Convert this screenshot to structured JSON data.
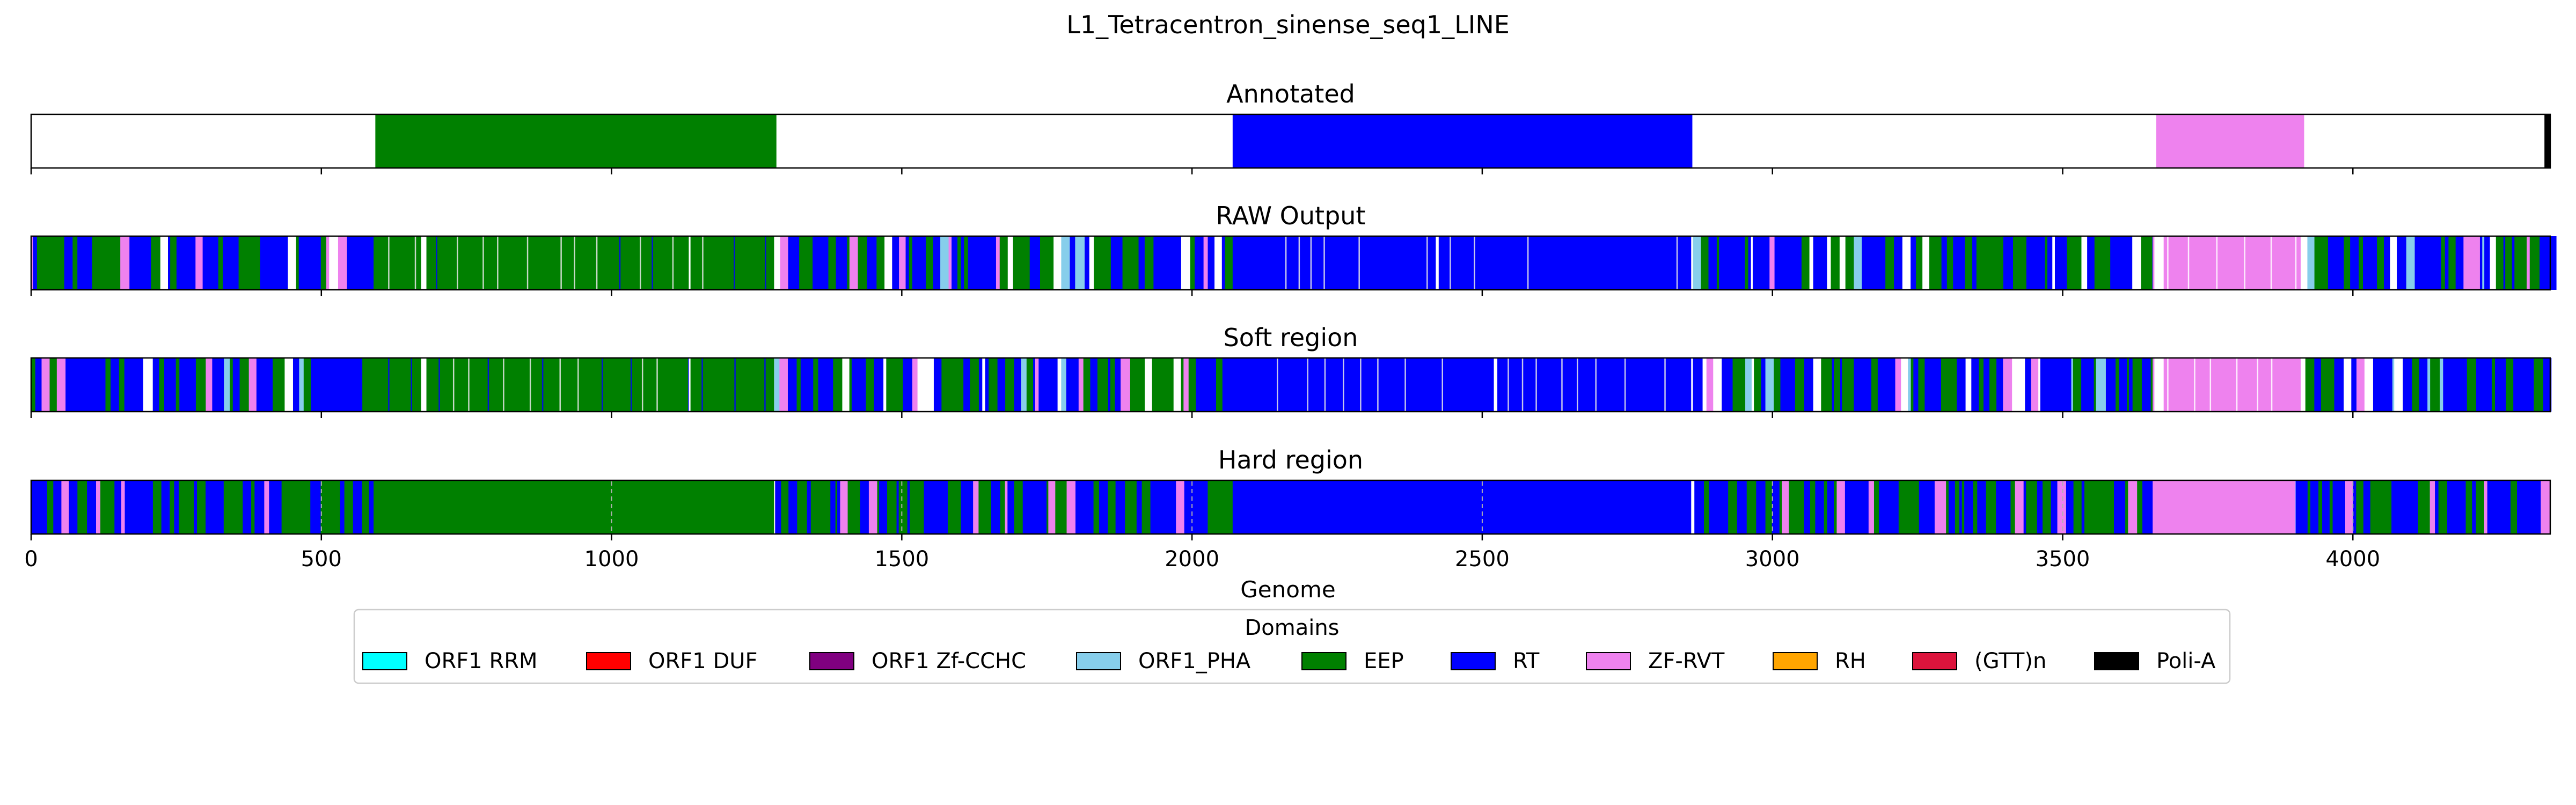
{
  "chart_data": {
    "type": "bar",
    "title": "L1_Tetracentron_sinense_seq1_LINE",
    "xlabel": "Genome",
    "xlim": [
      0,
      4340
    ],
    "xticks": [
      0,
      500,
      1000,
      1500,
      2000,
      2500,
      3000,
      3500,
      4000
    ],
    "tracks": [
      {
        "name": "Annotated",
        "segments": [
          {
            "domain": "EEP",
            "start": 593,
            "end": 1284
          },
          {
            "domain": "RT",
            "start": 2070,
            "end": 2862
          },
          {
            "domain": "ZF-RVT",
            "start": 3661,
            "end": 3916
          },
          {
            "domain": "Poli-A",
            "start": 4330,
            "end": 4340
          }
        ]
      },
      {
        "name": "RAW Output",
        "noise": true,
        "segments": [
          {
            "domain": "EEP",
            "start": 590,
            "end": 1280
          },
          {
            "domain": "RT",
            "start": 2070,
            "end": 2860
          },
          {
            "domain": "ZF-RVT",
            "start": 3655,
            "end": 3910
          }
        ],
        "gaps": [
          [
            672,
            681
          ],
          [
            1133,
            1136
          ],
          [
            2420,
            2425
          ],
          [
            3658,
            3674
          ]
        ]
      },
      {
        "name": "Soft region",
        "noise": true,
        "segments": [
          {
            "domain": "EEP",
            "start": 590,
            "end": 1280
          },
          {
            "domain": "RT",
            "start": 2070,
            "end": 2860
          },
          {
            "domain": "ZF-RVT",
            "start": 3655,
            "end": 3910
          }
        ],
        "gaps": [
          [
            672,
            681
          ],
          [
            1133,
            1136
          ],
          [
            2520,
            2526
          ],
          [
            3658,
            3674
          ]
        ]
      },
      {
        "name": "Hard region",
        "noise": true,
        "segments": [
          {
            "domain": "EEP",
            "start": 590,
            "end": 1280
          },
          {
            "domain": "RT",
            "start": 2070,
            "end": 2860
          },
          {
            "domain": "ZF-RVT",
            "start": 3655,
            "end": 3900
          }
        ],
        "gaps": []
      }
    ],
    "legend": {
      "title": "Domains",
      "placement": "bottom-center",
      "items": [
        {
          "label": "ORF1 RRM",
          "color": "#00ffff"
        },
        {
          "label": "ORF1 DUF",
          "color": "#ff0000"
        },
        {
          "label": "ORF1 Zf-CCHC",
          "color": "#800080"
        },
        {
          "label": "ORF1_PHA",
          "color": "#87ceeb"
        },
        {
          "label": "EEP",
          "color": "#008000"
        },
        {
          "label": "RT",
          "color": "#0000ff"
        },
        {
          "label": "ZF-RVT",
          "color": "#ee82ee"
        },
        {
          "label": "RH",
          "color": "#ffa500"
        },
        {
          "label": "(GTT)n",
          "color": "#dc143c"
        },
        {
          "label": "Poli-A",
          "color": "#000000"
        }
      ]
    }
  }
}
